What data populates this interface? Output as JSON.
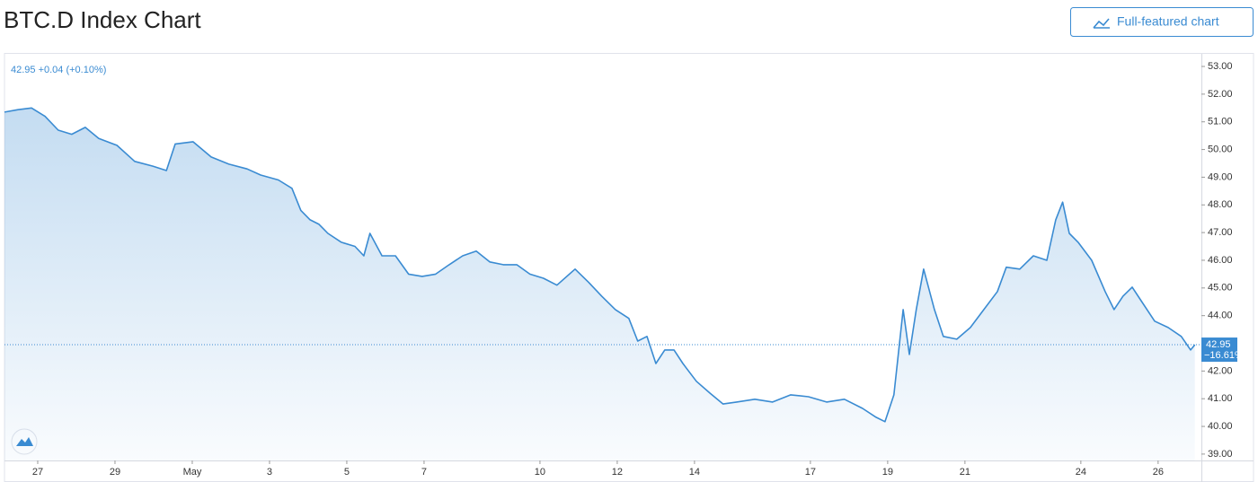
{
  "chart_data": {
    "type": "line",
    "title": "BTC.D Index Chart",
    "button_label": "Full-featured chart",
    "quote_legend": "42.95 +0.04 (+0.10%)",
    "last_change": "−16.61%",
    "x": [
      -0.86,
      -0.51,
      -0.16,
      0.19,
      0.53,
      0.88,
      1.23,
      1.58,
      2.05,
      2.51,
      2.98,
      3.33,
      3.56,
      4.02,
      4.49,
      4.95,
      5.42,
      5.77,
      6.23,
      6.58,
      6.81,
      7.05,
      7.28,
      7.51,
      7.86,
      8.21,
      8.44,
      8.6,
      8.91,
      9.26,
      9.6,
      9.95,
      10.3,
      10.65,
      11.0,
      11.35,
      11.7,
      12.05,
      12.4,
      12.74,
      13.09,
      13.44,
      13.91,
      14.26,
      14.6,
      14.95,
      15.3,
      15.53,
      15.77,
      16.0,
      16.23,
      16.47,
      16.7,
      17.05,
      17.4,
      17.74,
      18.09,
      18.56,
      19.02,
      19.49,
      19.95,
      20.42,
      20.88,
      21.35,
      21.7,
      21.93,
      22.16,
      22.4,
      22.56,
      22.74,
      22.93,
      23.21,
      23.44,
      23.79,
      24.14,
      24.49,
      24.84,
      25.07,
      25.42,
      25.77,
      26.12,
      26.35,
      26.53,
      26.7,
      26.93,
      27.28,
      27.63,
      27.86,
      28.09,
      28.33,
      28.56,
      28.91,
      29.26,
      29.6,
      29.84,
      29.95
    ],
    "series": [
      {
        "name": "BTC.D",
        "color": "#3a8bd2",
        "values": [
          51.35,
          51.44,
          51.5,
          51.2,
          50.7,
          50.55,
          50.8,
          50.4,
          50.15,
          49.57,
          49.4,
          49.24,
          50.2,
          50.28,
          49.73,
          49.47,
          49.3,
          49.08,
          48.9,
          48.6,
          47.8,
          47.46,
          47.3,
          46.97,
          46.65,
          46.5,
          46.16,
          46.97,
          46.16,
          46.16,
          45.5,
          45.42,
          45.5,
          45.84,
          46.16,
          46.33,
          45.94,
          45.84,
          45.84,
          45.5,
          45.35,
          45.1,
          45.68,
          45.2,
          44.7,
          44.22,
          43.9,
          43.08,
          43.25,
          42.27,
          42.76,
          42.76,
          42.27,
          41.63,
          41.2,
          40.81,
          40.88,
          40.98,
          40.88,
          41.14,
          41.07,
          40.88,
          40.98,
          40.65,
          40.33,
          40.17,
          41.14,
          44.22,
          42.6,
          44.22,
          45.68,
          44.22,
          43.25,
          43.15,
          43.57,
          44.22,
          44.87,
          45.75,
          45.68,
          46.16,
          46.0,
          47.46,
          48.1,
          46.97,
          46.65,
          46.0,
          44.87,
          44.22,
          44.7,
          45.03,
          44.54,
          43.8,
          43.57,
          43.25,
          42.76,
          42.95
        ]
      }
    ],
    "xlim": [
      -0.86,
      30.12
    ],
    "ylim": [
      38.77,
      53.39
    ],
    "xticks": [
      {
        "value": 0,
        "label": "27"
      },
      {
        "value": 2,
        "label": "29"
      },
      {
        "value": 4,
        "label": "May"
      },
      {
        "value": 6,
        "label": "3"
      },
      {
        "value": 8,
        "label": "5"
      },
      {
        "value": 10,
        "label": "7"
      },
      {
        "value": 13,
        "label": "10"
      },
      {
        "value": 15,
        "label": "12"
      },
      {
        "value": 17,
        "label": "14"
      },
      {
        "value": 20,
        "label": "17"
      },
      {
        "value": 22,
        "label": "19"
      },
      {
        "value": 24,
        "label": "21"
      },
      {
        "value": 27,
        "label": "24"
      },
      {
        "value": 29,
        "label": "26"
      }
    ],
    "yticks": [
      {
        "value": 39,
        "label": "39.00"
      },
      {
        "value": 40,
        "label": "40.00"
      },
      {
        "value": 41,
        "label": "41.00"
      },
      {
        "value": 42,
        "label": "42.00"
      },
      {
        "value": 43,
        "label": "43.00"
      },
      {
        "value": 44,
        "label": "44.00"
      },
      {
        "value": 45,
        "label": "45.00"
      },
      {
        "value": 46,
        "label": "46.00"
      },
      {
        "value": 47,
        "label": "47.00"
      },
      {
        "value": 48,
        "label": "48.00"
      },
      {
        "value": 49,
        "label": "49.00"
      },
      {
        "value": 50,
        "label": "50.00"
      },
      {
        "value": 51,
        "label": "51.00"
      },
      {
        "value": 52,
        "label": "52.00"
      },
      {
        "value": 53,
        "label": "53.00"
      }
    ],
    "grid": false
  }
}
